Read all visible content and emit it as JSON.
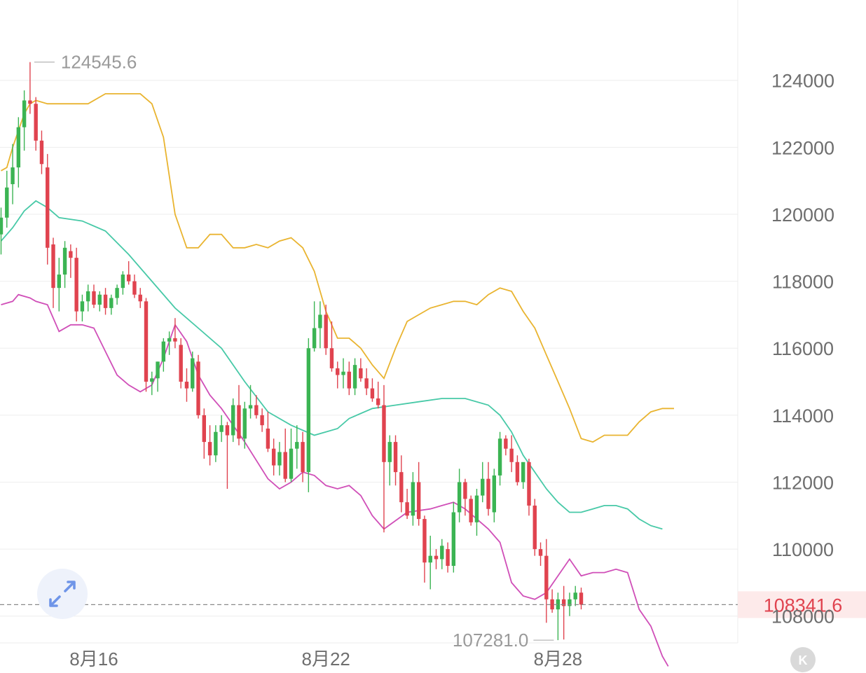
{
  "chart_data": {
    "type": "candlestick",
    "y_axis_labels": [
      "124000",
      "122000",
      "120000",
      "118000",
      "116000",
      "114000",
      "112000",
      "110000",
      "108000"
    ],
    "ylim": [
      106300,
      126400
    ],
    "x_axis_labels": [
      "8月16",
      "8月22",
      "8月28"
    ],
    "max_marker": "124545.6",
    "min_marker": "107281.0",
    "last_price": "108341.6",
    "colors": {
      "up": "#3bb453",
      "down": "#e0434f",
      "band_upper": "#e9b430",
      "band_middle": "#47c9a7",
      "band_lower": "#d04fb8",
      "grid": "#eeeeee",
      "axis_text": "#6e6e6e",
      "last_price": "#e0434f",
      "last_price_bg": "#fdeaea",
      "marker_text": "#9a9a9a"
    },
    "candles": [
      [
        119400,
        120200,
        118800,
        119900
      ],
      [
        119900,
        121300,
        119600,
        120800
      ],
      [
        120900,
        122100,
        120300,
        121400
      ],
      [
        121400,
        122900,
        120800,
        122600
      ],
      [
        122600,
        123700,
        121900,
        123400
      ],
      [
        123400,
        124545.6,
        123000,
        123300
      ],
      [
        123300,
        123500,
        121900,
        122200
      ],
      [
        122200,
        122500,
        121200,
        121500
      ],
      [
        121400,
        121800,
        118500,
        119000
      ],
      [
        119100,
        119300,
        117200,
        117800
      ],
      [
        117800,
        118700,
        117100,
        118200
      ],
      [
        118200,
        119200,
        117800,
        119000
      ],
      [
        118900,
        119100,
        118100,
        118700
      ],
      [
        118700,
        119000,
        116800,
        117100
      ],
      [
        117100,
        117600,
        116800,
        117400
      ],
      [
        117400,
        117900,
        117100,
        117700
      ],
      [
        117700,
        117900,
        117200,
        117300
      ],
      [
        117300,
        117700,
        117100,
        117600
      ],
      [
        117600,
        117800,
        117000,
        117200
      ],
      [
        117200,
        117600,
        117000,
        117500
      ],
      [
        117500,
        117900,
        117300,
        117800
      ],
      [
        117800,
        118300,
        117600,
        118200
      ],
      [
        118200,
        118600,
        117900,
        118000
      ],
      [
        118000,
        118200,
        117500,
        117600
      ],
      [
        117600,
        117800,
        117200,
        117400
      ],
      [
        117400,
        117500,
        114700,
        115000
      ],
      [
        115000,
        115300,
        114600,
        115100
      ],
      [
        115100,
        115600,
        114700,
        115600
      ],
      [
        115600,
        116300,
        115300,
        116200
      ],
      [
        116200,
        116500,
        115800,
        116300
      ],
      [
        116300,
        116900,
        116000,
        116200
      ],
      [
        116100,
        116300,
        114800,
        115000
      ],
      [
        115000,
        115400,
        114400,
        114800
      ],
      [
        114800,
        115900,
        114700,
        115700
      ],
      [
        115600,
        115800,
        113900,
        114000
      ],
      [
        114000,
        114200,
        112700,
        113200
      ],
      [
        113200,
        113700,
        112500,
        112800
      ],
      [
        112800,
        113700,
        112600,
        113500
      ],
      [
        113500,
        114000,
        113200,
        113700
      ],
      [
        113700,
        113800,
        111800,
        113400
      ],
      [
        113400,
        114500,
        113200,
        114300
      ],
      [
        114300,
        114900,
        113100,
        113300
      ],
      [
        113300,
        114400,
        113000,
        114200
      ],
      [
        114200,
        114900,
        113900,
        114300
      ],
      [
        114300,
        114600,
        113900,
        114000
      ],
      [
        114000,
        114200,
        113500,
        113700
      ],
      [
        113600,
        114100,
        112900,
        113000
      ],
      [
        113000,
        113300,
        112200,
        112500
      ],
      [
        112500,
        113200,
        112200,
        112900
      ],
      [
        112900,
        113600,
        112000,
        112100
      ],
      [
        112100,
        113600,
        112000,
        113000
      ],
      [
        113000,
        113700,
        112400,
        113200
      ],
      [
        113200,
        113500,
        112000,
        112300
      ],
      [
        112300,
        116300,
        111700,
        116000
      ],
      [
        116000,
        117400,
        115900,
        116600
      ],
      [
        116600,
        117400,
        116000,
        117000
      ],
      [
        117000,
        117300,
        115800,
        116000
      ],
      [
        116000,
        116800,
        115300,
        115400
      ],
      [
        115400,
        115600,
        114800,
        115200
      ],
      [
        115200,
        115700,
        114800,
        115300
      ],
      [
        115300,
        115600,
        114600,
        114800
      ],
      [
        114800,
        115700,
        114600,
        115500
      ],
      [
        115400,
        115700,
        115000,
        115100
      ],
      [
        115100,
        115400,
        114600,
        114800
      ],
      [
        114800,
        115100,
        114400,
        114500
      ],
      [
        114500,
        115000,
        114200,
        114300
      ],
      [
        114300,
        114900,
        110500,
        112600
      ],
      [
        112600,
        113400,
        111900,
        113200
      ],
      [
        113200,
        113400,
        111900,
        112300
      ],
      [
        112300,
        112800,
        111100,
        111400
      ],
      [
        111400,
        111800,
        110900,
        111000
      ],
      [
        111000,
        112300,
        110700,
        112000
      ],
      [
        112000,
        112600,
        110700,
        110900
      ],
      [
        110900,
        111000,
        109000,
        109600
      ],
      [
        109600,
        110400,
        108800,
        109800
      ],
      [
        109800,
        110000,
        109400,
        109700
      ],
      [
        109700,
        110300,
        109400,
        110100
      ],
      [
        110000,
        110200,
        109300,
        109500
      ],
      [
        109500,
        111400,
        109300,
        111100
      ],
      [
        111100,
        112400,
        110800,
        112000
      ],
      [
        112000,
        112100,
        111000,
        111500
      ],
      [
        111500,
        111600,
        110700,
        110800
      ],
      [
        110800,
        111800,
        110400,
        111600
      ],
      [
        111600,
        112600,
        111400,
        112100
      ],
      [
        112100,
        112600,
        111000,
        111200
      ],
      [
        111100,
        112400,
        110800,
        112200
      ],
      [
        112200,
        113500,
        111900,
        113300
      ],
      [
        113300,
        113400,
        112800,
        113000
      ],
      [
        113000,
        113400,
        112300,
        112600
      ],
      [
        112600,
        112800,
        111900,
        112000
      ],
      [
        112000,
        112400,
        111800,
        112600
      ],
      [
        112600,
        112700,
        111000,
        111300
      ],
      [
        111300,
        111500,
        109800,
        110000
      ],
      [
        110000,
        110200,
        109500,
        109800
      ],
      [
        109800,
        110300,
        107800,
        108500
      ],
      [
        108500,
        108800,
        108100,
        108200
      ],
      [
        108200,
        108700,
        107281,
        108500
      ],
      [
        108500,
        108900,
        107300,
        108300
      ],
      [
        108300,
        108700,
        108000,
        108500
      ],
      [
        108500,
        108900,
        108300,
        108700
      ],
      [
        108700,
        108850,
        108200,
        108341.6
      ]
    ],
    "band_upper": [
      [
        0,
        121300
      ],
      [
        1,
        121400
      ],
      [
        2,
        122000
      ],
      [
        3,
        122500
      ],
      [
        4,
        123000
      ],
      [
        5,
        123300
      ],
      [
        6,
        123400
      ],
      [
        8,
        123300
      ],
      [
        12,
        123300
      ],
      [
        15,
        123300
      ],
      [
        18,
        123600
      ],
      [
        21,
        123600
      ],
      [
        24,
        123600
      ],
      [
        26,
        123300
      ],
      [
        28,
        122300
      ],
      [
        30,
        120000
      ],
      [
        32,
        119000
      ],
      [
        34,
        119000
      ],
      [
        36,
        119400
      ],
      [
        38,
        119400
      ],
      [
        40,
        119000
      ],
      [
        42,
        119000
      ],
      [
        44,
        119100
      ],
      [
        46,
        119000
      ],
      [
        48,
        119200
      ],
      [
        50,
        119300
      ],
      [
        52,
        119000
      ],
      [
        54,
        118300
      ],
      [
        56,
        117100
      ],
      [
        58,
        116300
      ],
      [
        60,
        116300
      ],
      [
        62,
        116000
      ],
      [
        64,
        115500
      ],
      [
        66,
        115100
      ],
      [
        68,
        116000
      ],
      [
        70,
        116800
      ],
      [
        72,
        117000
      ],
      [
        74,
        117200
      ],
      [
        76,
        117300
      ],
      [
        78,
        117400
      ],
      [
        80,
        117400
      ],
      [
        82,
        117300
      ],
      [
        84,
        117600
      ],
      [
        86,
        117800
      ],
      [
        88,
        117700
      ],
      [
        90,
        117100
      ],
      [
        92,
        116600
      ],
      [
        94,
        115800
      ],
      [
        96,
        115000
      ],
      [
        98,
        114200
      ],
      [
        100,
        113300
      ],
      [
        102,
        113200
      ],
      [
        104,
        113400
      ],
      [
        106,
        113400
      ],
      [
        108,
        113400
      ],
      [
        110,
        113800
      ],
      [
        112,
        114100
      ],
      [
        114,
        114200
      ],
      [
        116,
        114200
      ]
    ],
    "band_middle": [
      [
        0,
        119200
      ],
      [
        2,
        119600
      ],
      [
        4,
        120100
      ],
      [
        6,
        120400
      ],
      [
        8,
        120200
      ],
      [
        10,
        119900
      ],
      [
        14,
        119800
      ],
      [
        18,
        119500
      ],
      [
        22,
        118800
      ],
      [
        26,
        118000
      ],
      [
        30,
        117200
      ],
      [
        34,
        116600
      ],
      [
        38,
        116000
      ],
      [
        42,
        115000
      ],
      [
        46,
        114100
      ],
      [
        50,
        113700
      ],
      [
        54,
        113400
      ],
      [
        56,
        113500
      ],
      [
        58,
        113600
      ],
      [
        60,
        113900
      ],
      [
        64,
        114200
      ],
      [
        68,
        114300
      ],
      [
        72,
        114400
      ],
      [
        76,
        114500
      ],
      [
        80,
        114500
      ],
      [
        84,
        114300
      ],
      [
        86,
        114000
      ],
      [
        88,
        113500
      ],
      [
        90,
        112800
      ],
      [
        92,
        112300
      ],
      [
        94,
        111800
      ],
      [
        96,
        111400
      ],
      [
        98,
        111100
      ],
      [
        100,
        111100
      ],
      [
        102,
        111200
      ],
      [
        104,
        111300
      ],
      [
        106,
        111300
      ],
      [
        108,
        111200
      ],
      [
        110,
        110900
      ],
      [
        112,
        110700
      ],
      [
        114,
        110600
      ]
    ],
    "band_lower": [
      [
        0,
        117300
      ],
      [
        2,
        117400
      ],
      [
        3,
        117600
      ],
      [
        5,
        117500
      ],
      [
        6,
        117400
      ],
      [
        8,
        117300
      ],
      [
        10,
        116500
      ],
      [
        12,
        116700
      ],
      [
        14,
        116700
      ],
      [
        16,
        116600
      ],
      [
        18,
        115900
      ],
      [
        20,
        115200
      ],
      [
        22,
        114900
      ],
      [
        24,
        114700
      ],
      [
        26,
        114900
      ],
      [
        28,
        115700
      ],
      [
        30,
        116700
      ],
      [
        32,
        116200
      ],
      [
        34,
        115200
      ],
      [
        36,
        114600
      ],
      [
        38,
        114200
      ],
      [
        42,
        113200
      ],
      [
        46,
        112100
      ],
      [
        48,
        111800
      ],
      [
        50,
        112000
      ],
      [
        52,
        112300
      ],
      [
        54,
        112200
      ],
      [
        56,
        111900
      ],
      [
        58,
        111800
      ],
      [
        60,
        111900
      ],
      [
        62,
        111600
      ],
      [
        64,
        111000
      ],
      [
        66,
        110600
      ],
      [
        70,
        111100
      ],
      [
        74,
        111200
      ],
      [
        76,
        111300
      ],
      [
        78,
        111400
      ],
      [
        80,
        111200
      ],
      [
        84,
        110600
      ],
      [
        86,
        110200
      ],
      [
        88,
        109000
      ],
      [
        90,
        108600
      ],
      [
        92,
        108500
      ],
      [
        94,
        108700
      ],
      [
        96,
        109200
      ],
      [
        98,
        109700
      ],
      [
        100,
        109200
      ],
      [
        102,
        109300
      ],
      [
        104,
        109300
      ],
      [
        106,
        109400
      ],
      [
        108,
        109300
      ],
      [
        110,
        108200
      ],
      [
        112,
        107700
      ],
      [
        114,
        106800
      ],
      [
        115,
        106500
      ]
    ]
  },
  "controls": {
    "expand_icon": "expand-arrows-icon",
    "scroll_icon": "scroll-to-latest-icon",
    "scroll_glyph": "K"
  }
}
